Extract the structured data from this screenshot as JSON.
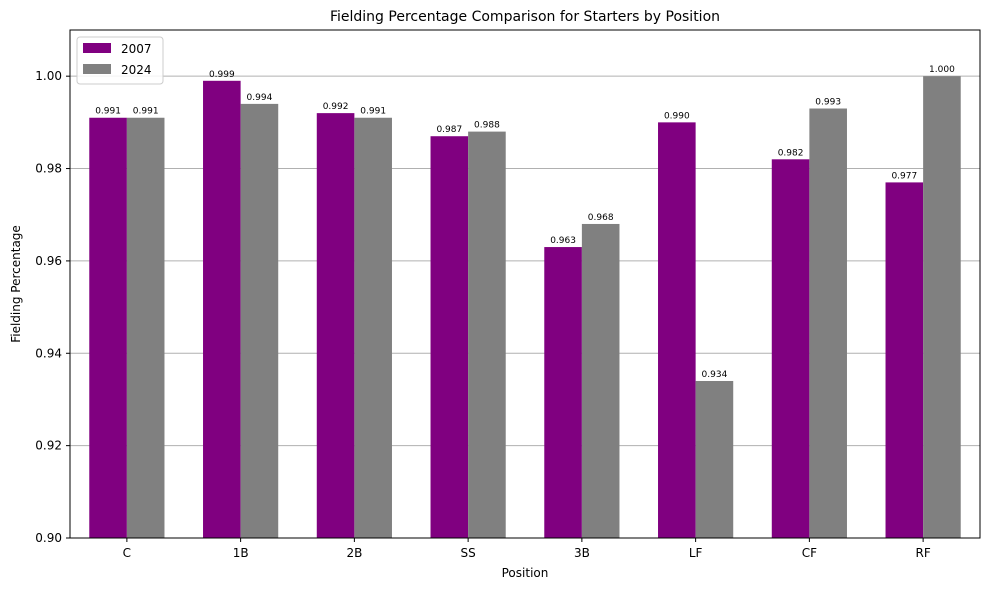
{
  "chart_data": {
    "type": "bar",
    "title": "Fielding Percentage Comparison for Starters by Position",
    "xlabel": "Position",
    "ylabel": "Fielding Percentage",
    "categories": [
      "C",
      "1B",
      "2B",
      "SS",
      "3B",
      "LF",
      "CF",
      "RF"
    ],
    "series": [
      {
        "name": "2007",
        "color": "#800080",
        "values": [
          0.991,
          0.999,
          0.992,
          0.987,
          0.963,
          0.99,
          0.982,
          0.977
        ],
        "labels": [
          "0.991",
          "0.999",
          "0.992",
          "0.987",
          "0.963",
          "0.990",
          "0.982",
          "0.977"
        ]
      },
      {
        "name": "2024",
        "color": "#808080",
        "values": [
          0.991,
          0.994,
          0.991,
          0.988,
          0.968,
          0.934,
          0.993,
          1.0
        ],
        "labels": [
          "0.991",
          "0.994",
          "0.991",
          "0.988",
          "0.968",
          "0.934",
          "0.993",
          "1.000"
        ]
      }
    ],
    "ylim": [
      0.9,
      1.01
    ],
    "yticks": [
      0.9,
      0.92,
      0.94,
      0.96,
      0.98,
      1.0
    ],
    "ytick_labels": [
      "0.90",
      "0.92",
      "0.94",
      "0.96",
      "0.98",
      "1.00"
    ],
    "grid": "y",
    "grid_color": "#b0b0b0",
    "legend_position": "top-left"
  }
}
